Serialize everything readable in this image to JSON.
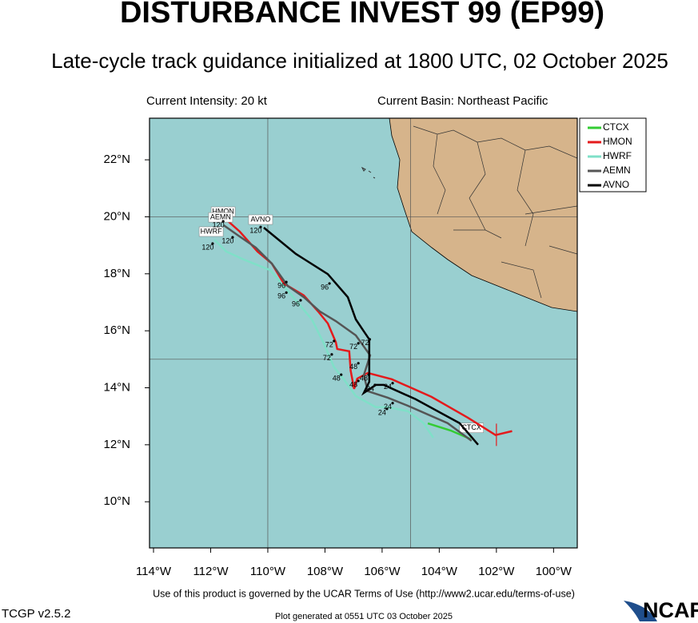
{
  "chart_data": {
    "type": "track-map",
    "title": "DISTURBANCE INVEST 99 (EP99)",
    "subtitle": "Late-cycle track guidance initialized at 1800 UTC, 02 October 2025",
    "intensity": "Current Intensity: 20 kt",
    "basin": "Current Basin: Northeast Pacific",
    "footer": "Use of this product is governed by the UCAR Terms of Use (http://www2.ucar.edu/terms-of-use)",
    "version": "TCGP v2.5.2",
    "generated": "Plot generated at 0551 UTC   03 October 2025",
    "logo": "NCAR",
    "xlim": [
      -114.14,
      -99.17
    ],
    "ylim": [
      8.38,
      23.46
    ],
    "xticks": [
      {
        "value": -114,
        "label": "114°W"
      },
      {
        "value": -112,
        "label": "112°W"
      },
      {
        "value": -110,
        "label": "110°W"
      },
      {
        "value": -108,
        "label": "108°W"
      },
      {
        "value": -106,
        "label": "106°W"
      },
      {
        "value": -104,
        "label": "104°W"
      },
      {
        "value": -102,
        "label": "102°W"
      },
      {
        "value": -100,
        "label": "100°W"
      }
    ],
    "yticks": [
      {
        "value": 10,
        "label": "10°N"
      },
      {
        "value": 12,
        "label": "12°N"
      },
      {
        "value": 14,
        "label": "14°N"
      },
      {
        "value": 16,
        "label": "16°N"
      },
      {
        "value": 18,
        "label": "18°N"
      },
      {
        "value": 20,
        "label": "20°N"
      },
      {
        "value": 22,
        "label": "22°N"
      }
    ],
    "grid_lon": [
      -110,
      -105
    ],
    "grid_lat": [
      15,
      20
    ],
    "current_position": {
      "lon": -102.0,
      "lat": 12.35
    },
    "series": [
      {
        "name": "CTCX",
        "color": "#33cc33",
        "lon": [
          -104.4,
          -103.6,
          -102.9
        ],
        "lat": [
          12.75,
          12.5,
          12.2
        ]
      },
      {
        "name": "HMON",
        "color": "#e41a1c",
        "lon": [
          -101.45,
          -102.03,
          -103.0,
          -104.27,
          -105.66,
          -106.5,
          -106.87,
          -106.98,
          -107.1,
          -107.15,
          -107.57,
          -107.62,
          -107.9,
          -108.24,
          -108.74,
          -109.44,
          -109.86,
          -110.36,
          -110.98,
          -111.45
        ],
        "lat": [
          12.48,
          12.34,
          12.95,
          13.68,
          14.3,
          14.52,
          14.32,
          13.96,
          14.6,
          15.28,
          15.36,
          15.6,
          16.26,
          16.68,
          17.24,
          17.66,
          18.36,
          18.78,
          19.48,
          19.9
        ]
      },
      {
        "name": "HWRF",
        "color": "#7fe0c8",
        "lon": [
          -104.21,
          -104.55,
          -105.1,
          -105.8,
          -106.22,
          -106.92,
          -107.34,
          -107.68,
          -108.04,
          -108.46,
          -109.16,
          -109.92,
          -110.84,
          -111.45,
          -111.87
        ],
        "lat": [
          12.25,
          12.76,
          13.18,
          13.32,
          13.32,
          13.71,
          14.3,
          14.72,
          15.56,
          16.4,
          17.24,
          18.13,
          18.5,
          18.78,
          19.2
        ]
      },
      {
        "name": "AEMN",
        "color": "#555555",
        "lon": [
          -102.87,
          -103.71,
          -105.1,
          -105.8,
          -106.5,
          -106.64,
          -106.42,
          -106.92,
          -107.62,
          -108.18,
          -108.74,
          -109.3,
          -109.86,
          -110.42,
          -111.03,
          -111.54
        ],
        "lat": [
          12.14,
          12.76,
          13.37,
          13.65,
          13.88,
          14.44,
          15.14,
          15.84,
          16.34,
          16.68,
          17.18,
          17.57,
          18.36,
          18.92,
          19.34,
          19.7
        ]
      },
      {
        "name": "AVNO",
        "color": "#000000",
        "lon": [
          -102.64,
          -103.29,
          -104.83,
          -105.94,
          -106.22,
          -106.64,
          -106.45,
          -106.45,
          -106.45,
          -106.64,
          -106.92,
          -107.2,
          -107.9,
          -109.02,
          -110.14
        ],
        "lat": [
          12.0,
          12.76,
          13.6,
          14.1,
          14.1,
          13.82,
          14.21,
          15.28,
          15.7,
          15.98,
          16.4,
          17.18,
          17.99,
          18.7,
          19.62
        ]
      }
    ],
    "hour_labels": [
      {
        "label": "120",
        "lon": -111.73,
        "lat": 19.7
      },
      {
        "label": "120",
        "lon": -110.42,
        "lat": 19.5
      },
      {
        "label": "120",
        "lon": -111.4,
        "lat": 19.14
      },
      {
        "label": "120",
        "lon": -112.1,
        "lat": 18.92
      },
      {
        "label": "96",
        "lon": -109.52,
        "lat": 17.57
      },
      {
        "label": "96",
        "lon": -109.52,
        "lat": 17.2
      },
      {
        "label": "96",
        "lon": -109.02,
        "lat": 16.93
      },
      {
        "label": "96",
        "lon": -108.01,
        "lat": 17.52
      },
      {
        "label": "72",
        "lon": -107.85,
        "lat": 15.5
      },
      {
        "label": "72",
        "lon": -107.0,
        "lat": 15.42
      },
      {
        "label": "72",
        "lon": -106.6,
        "lat": 15.56
      },
      {
        "label": "72",
        "lon": -107.93,
        "lat": 15.03
      },
      {
        "label": "48",
        "lon": -107.0,
        "lat": 14.72
      },
      {
        "label": "48",
        "lon": -107.6,
        "lat": 14.32
      },
      {
        "label": "48",
        "lon": -107.0,
        "lat": 14.1
      },
      {
        "label": "48",
        "lon": -106.64,
        "lat": 14.32
      },
      {
        "label": "24",
        "lon": -106.42,
        "lat": 13.96
      },
      {
        "label": "24",
        "lon": -105.8,
        "lat": 14.02
      },
      {
        "label": "24",
        "lon": -105.8,
        "lat": 13.32
      },
      {
        "label": "24",
        "lon": -106.0,
        "lat": 13.12
      }
    ]
  }
}
